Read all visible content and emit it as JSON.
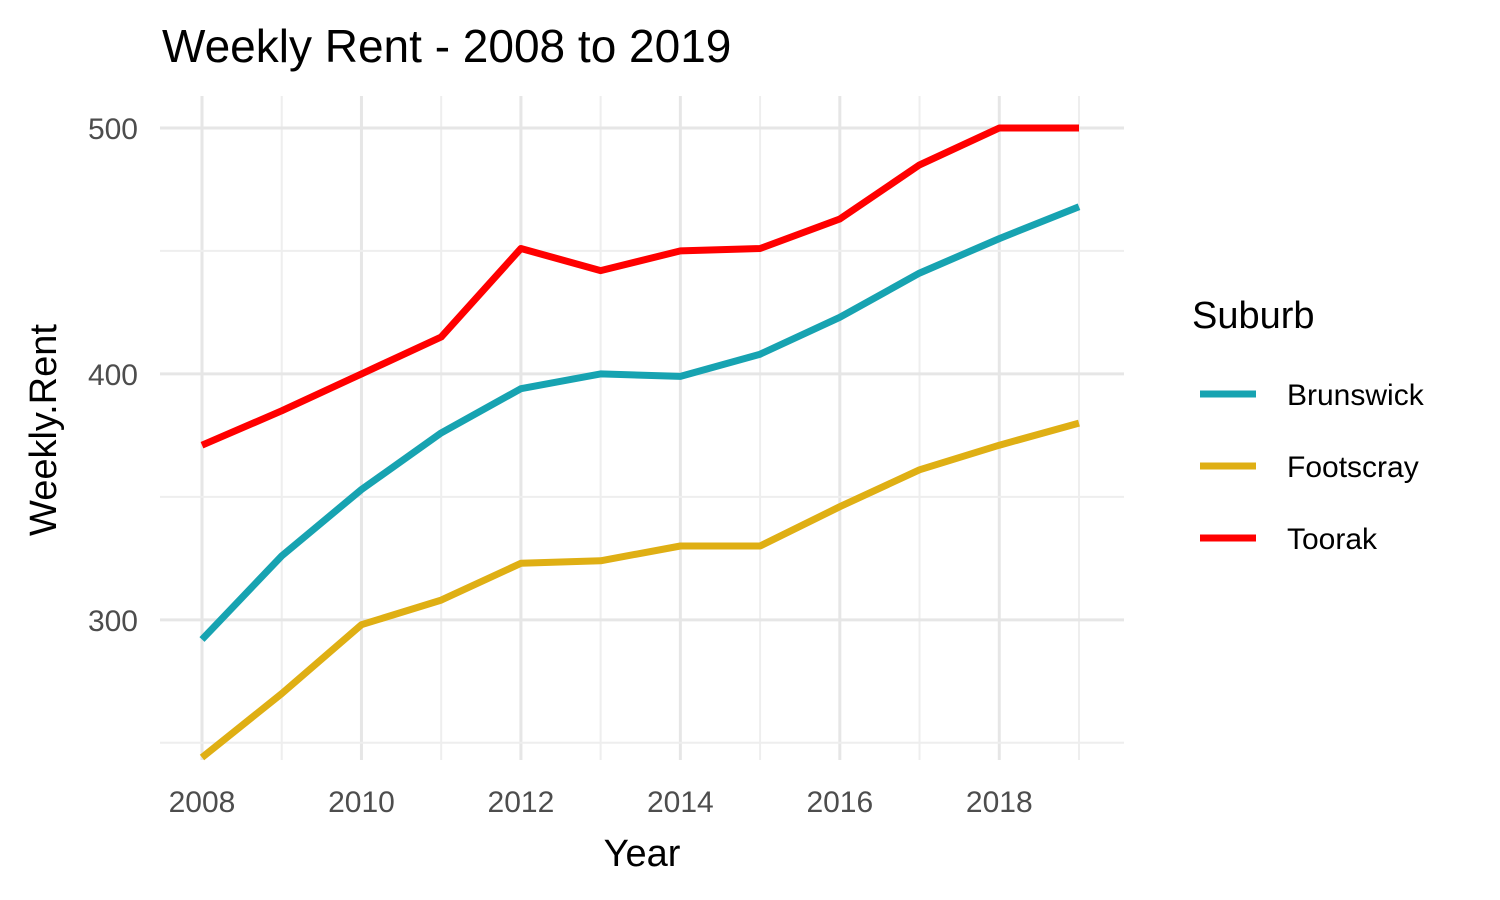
{
  "chart_data": {
    "type": "line",
    "title": "Weekly Rent - 2008 to 2019",
    "xlabel": "Year",
    "ylabel": "Weekly.Rent",
    "x": [
      2008,
      2009,
      2010,
      2011,
      2012,
      2013,
      2014,
      2015,
      2016,
      2017,
      2018,
      2019
    ],
    "xlim": [
      2008,
      2019
    ],
    "ylim": [
      243,
      513
    ],
    "x_ticks": [
      2008,
      2010,
      2012,
      2014,
      2016,
      2018
    ],
    "x_tick_labels": [
      "2008",
      "2010",
      "2012",
      "2014",
      "2016",
      "2018"
    ],
    "y_ticks": [
      300,
      400,
      500
    ],
    "y_tick_labels": [
      "300",
      "400",
      "500"
    ],
    "grid": true,
    "legend": {
      "title": "Suburb",
      "position": "right"
    },
    "series": [
      {
        "name": "Brunswick",
        "color": "#17a3b1",
        "values": [
          292,
          326,
          353,
          376,
          394,
          400,
          399,
          408,
          423,
          441,
          455,
          468
        ]
      },
      {
        "name": "Footscray",
        "color": "#dfaf14",
        "values": [
          244,
          270,
          298,
          308,
          323,
          324,
          330,
          330,
          346,
          361,
          371,
          380
        ]
      },
      {
        "name": "Toorak",
        "color": "#ff0000",
        "values": [
          371,
          385,
          400,
          415,
          451,
          442,
          450,
          451,
          463,
          485,
          500,
          500
        ]
      }
    ]
  }
}
